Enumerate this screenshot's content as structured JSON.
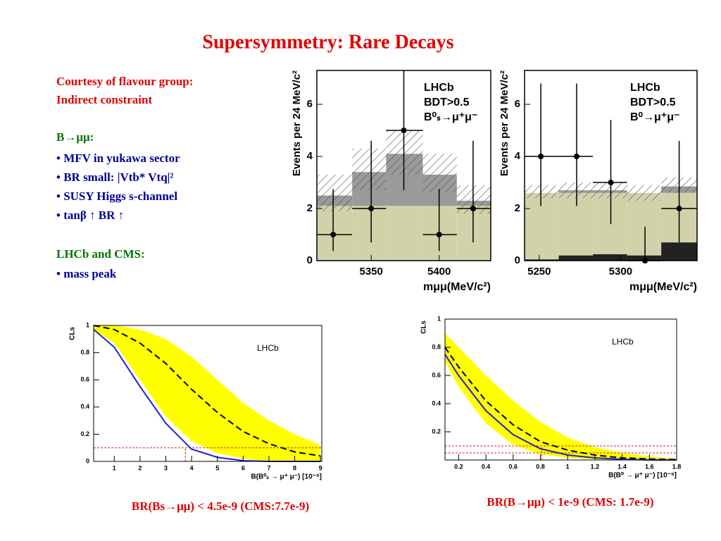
{
  "title": "Supersymmetry: Rare Decays",
  "notes": {
    "courtesy": [
      "Courtesy of flavour group:",
      "Indirect constraint"
    ],
    "heading1": "B→μμ:",
    "bullets1": [
      "• MFV in yukawa sector",
      "• BR small: |Vtb* Vtq|²",
      "• SUSY Higgs s-channel",
      "• tanβ ↑ BR ↑"
    ],
    "heading2": "LHCb and CMS:",
    "bullets2": [
      "• mass peak"
    ]
  },
  "captions": [
    "BR(Bs→μμ) < 4.5e-9   (CMS:7.7e-9)",
    "BR(B→μμ) < 1e-9 (CMS: 1.7e-9)"
  ],
  "chart_data": [
    {
      "type": "histogram",
      "ylabel": "Events per 24 MeV/c²",
      "xlabel": "mμμ(MeV/c²)",
      "annotations": [
        "LHCb",
        "BDT>0.5",
        "B⁰ₛ→μ⁺μ⁻"
      ],
      "bins": [
        5310,
        5336,
        5361,
        5388,
        5413,
        5438
      ],
      "series": [
        {
          "color": "#d2d2aa",
          "values": [
            2.1,
            2.1,
            2.1,
            2.1,
            2.1
          ]
        },
        {
          "color": "#9a9a9a",
          "values": [
            0.4,
            1.3,
            2.0,
            1.2,
            0.2
          ]
        }
      ],
      "band_low": [
        1.9,
        2.7,
        3.3,
        2.6,
        1.8
      ],
      "band_high": [
        3.3,
        4.3,
        5.0,
        4.1,
        2.9
      ],
      "points": {
        "x": [
          5322,
          5350,
          5374,
          5400,
          5425
        ],
        "values": [
          1,
          2,
          5,
          1,
          2
        ],
        "err_low": [
          0.63,
          1.3,
          2.3,
          0.63,
          1.3
        ],
        "err_high": [
          1.75,
          2.6,
          2.3,
          1.75,
          2.6
        ]
      },
      "xlim": [
        5310,
        5438
      ],
      "ylim": [
        0,
        7.3
      ],
      "xticks": [
        5350,
        5400
      ],
      "yticks": [
        0,
        2,
        4,
        6
      ]
    },
    {
      "type": "histogram",
      "ylabel": "Events per 24 MeV/c²",
      "xlabel": "mμμ(MeV/c²)",
      "annotations": [
        "LHCb",
        "BDT>0.5",
        "B⁰→μ⁺μ⁻"
      ],
      "bins": [
        5241,
        5262,
        5283,
        5304,
        5325,
        5347
      ],
      "series": [
        {
          "color": "#222222",
          "values": [
            0.05,
            0.2,
            0.25,
            0.2,
            0.7
          ]
        },
        {
          "color": "#d2d2aa",
          "values": [
            2.55,
            2.4,
            2.35,
            2.4,
            1.9
          ]
        },
        {
          "color": "#9a9a9a",
          "values": [
            0,
            0.1,
            0.1,
            0,
            0.25
          ]
        }
      ],
      "band_low": [
        2.4,
        2.4,
        2.4,
        2.3,
        2.6
      ],
      "band_high": [
        2.9,
        3.0,
        3.0,
        2.9,
        3.2
      ],
      "points": {
        "x": [
          5251,
          5273,
          5294,
          5315,
          5336
        ],
        "values": [
          4,
          4,
          3,
          0,
          2
        ],
        "err_low": [
          1.9,
          1.9,
          1.6,
          0,
          1.3
        ],
        "err_high": [
          2.8,
          2.8,
          2.4,
          1.3,
          2.6
        ]
      },
      "xlim": [
        5241,
        5347
      ],
      "ylim": [
        0,
        7.3
      ],
      "xticks": [
        5250,
        5300
      ],
      "yticks": [
        0,
        2,
        4,
        6
      ]
    },
    {
      "type": "line",
      "ylabel": "CLs",
      "xlabel": "B(B⁰ₛ → μ⁺ μ⁻) [10⁻⁹]",
      "annotations": [
        "LHCb"
      ],
      "x": [
        0.2,
        1,
        2,
        3,
        4,
        5,
        6,
        7,
        8,
        9
      ],
      "band_color": "#ffff00",
      "band_low": [
        0.97,
        0.87,
        0.6,
        0.33,
        0.15,
        0.06,
        0.02,
        0,
        0,
        0
      ],
      "band_high": [
        1.0,
        1.0,
        0.97,
        0.9,
        0.77,
        0.6,
        0.43,
        0.3,
        0.2,
        0.12
      ],
      "series": [
        {
          "color": "#000000",
          "dashed": true,
          "values": [
            1.0,
            0.97,
            0.87,
            0.72,
            0.53,
            0.36,
            0.22,
            0.13,
            0.07,
            0.04
          ]
        },
        {
          "color": "#2222cc",
          "dashed": false,
          "values": [
            0.97,
            0.84,
            0.55,
            0.28,
            0.09,
            0.03,
            0.005,
            0,
            0,
            0
          ]
        }
      ],
      "hlines": [
        0.1
      ],
      "vline": 3.76,
      "xlim": [
        0.2,
        9.05
      ],
      "ylim": [
        0,
        1
      ],
      "xticks": [
        1,
        2,
        3,
        4,
        5,
        6,
        7,
        8,
        9
      ],
      "yticks": [
        0,
        0.2,
        0.4,
        0.6,
        0.8,
        1
      ]
    },
    {
      "type": "line",
      "ylabel": "CLs",
      "xlabel": "B(B⁰ → μ⁺ μ⁻) [10⁻⁹]",
      "annotations": [
        "LHCb"
      ],
      "x": [
        0.1,
        0.2,
        0.4,
        0.6,
        0.8,
        1.0,
        1.2,
        1.4,
        1.6,
        1.8
      ],
      "band_color": "#ffff00",
      "band_low": [
        0.7,
        0.52,
        0.26,
        0.11,
        0.04,
        0.015,
        0.005,
        0,
        0,
        0
      ],
      "band_high": [
        0.9,
        0.8,
        0.6,
        0.42,
        0.27,
        0.16,
        0.09,
        0.05,
        0.025,
        0.01
      ],
      "series": [
        {
          "color": "#000000",
          "dashed": true,
          "values": [
            0.8,
            0.66,
            0.42,
            0.25,
            0.13,
            0.07,
            0.035,
            0.015,
            0.007,
            0.003
          ]
        },
        {
          "color": "#2222cc",
          "dashed": false,
          "values": [
            0.75,
            0.6,
            0.35,
            0.18,
            0.08,
            0.035,
            0.015,
            0.005,
            0,
            0
          ]
        }
      ],
      "hlines": [
        0.1,
        0.05
      ],
      "vline": 0.81,
      "xlim": [
        0.1,
        1.8
      ],
      "ylim": [
        0,
        1
      ],
      "xticks": [
        0.2,
        0.4,
        0.6,
        0.8,
        1,
        1.2,
        1.4,
        1.6,
        1.8
      ],
      "yticks": [
        0.2,
        0.4,
        0.6,
        0.8,
        1
      ]
    }
  ]
}
